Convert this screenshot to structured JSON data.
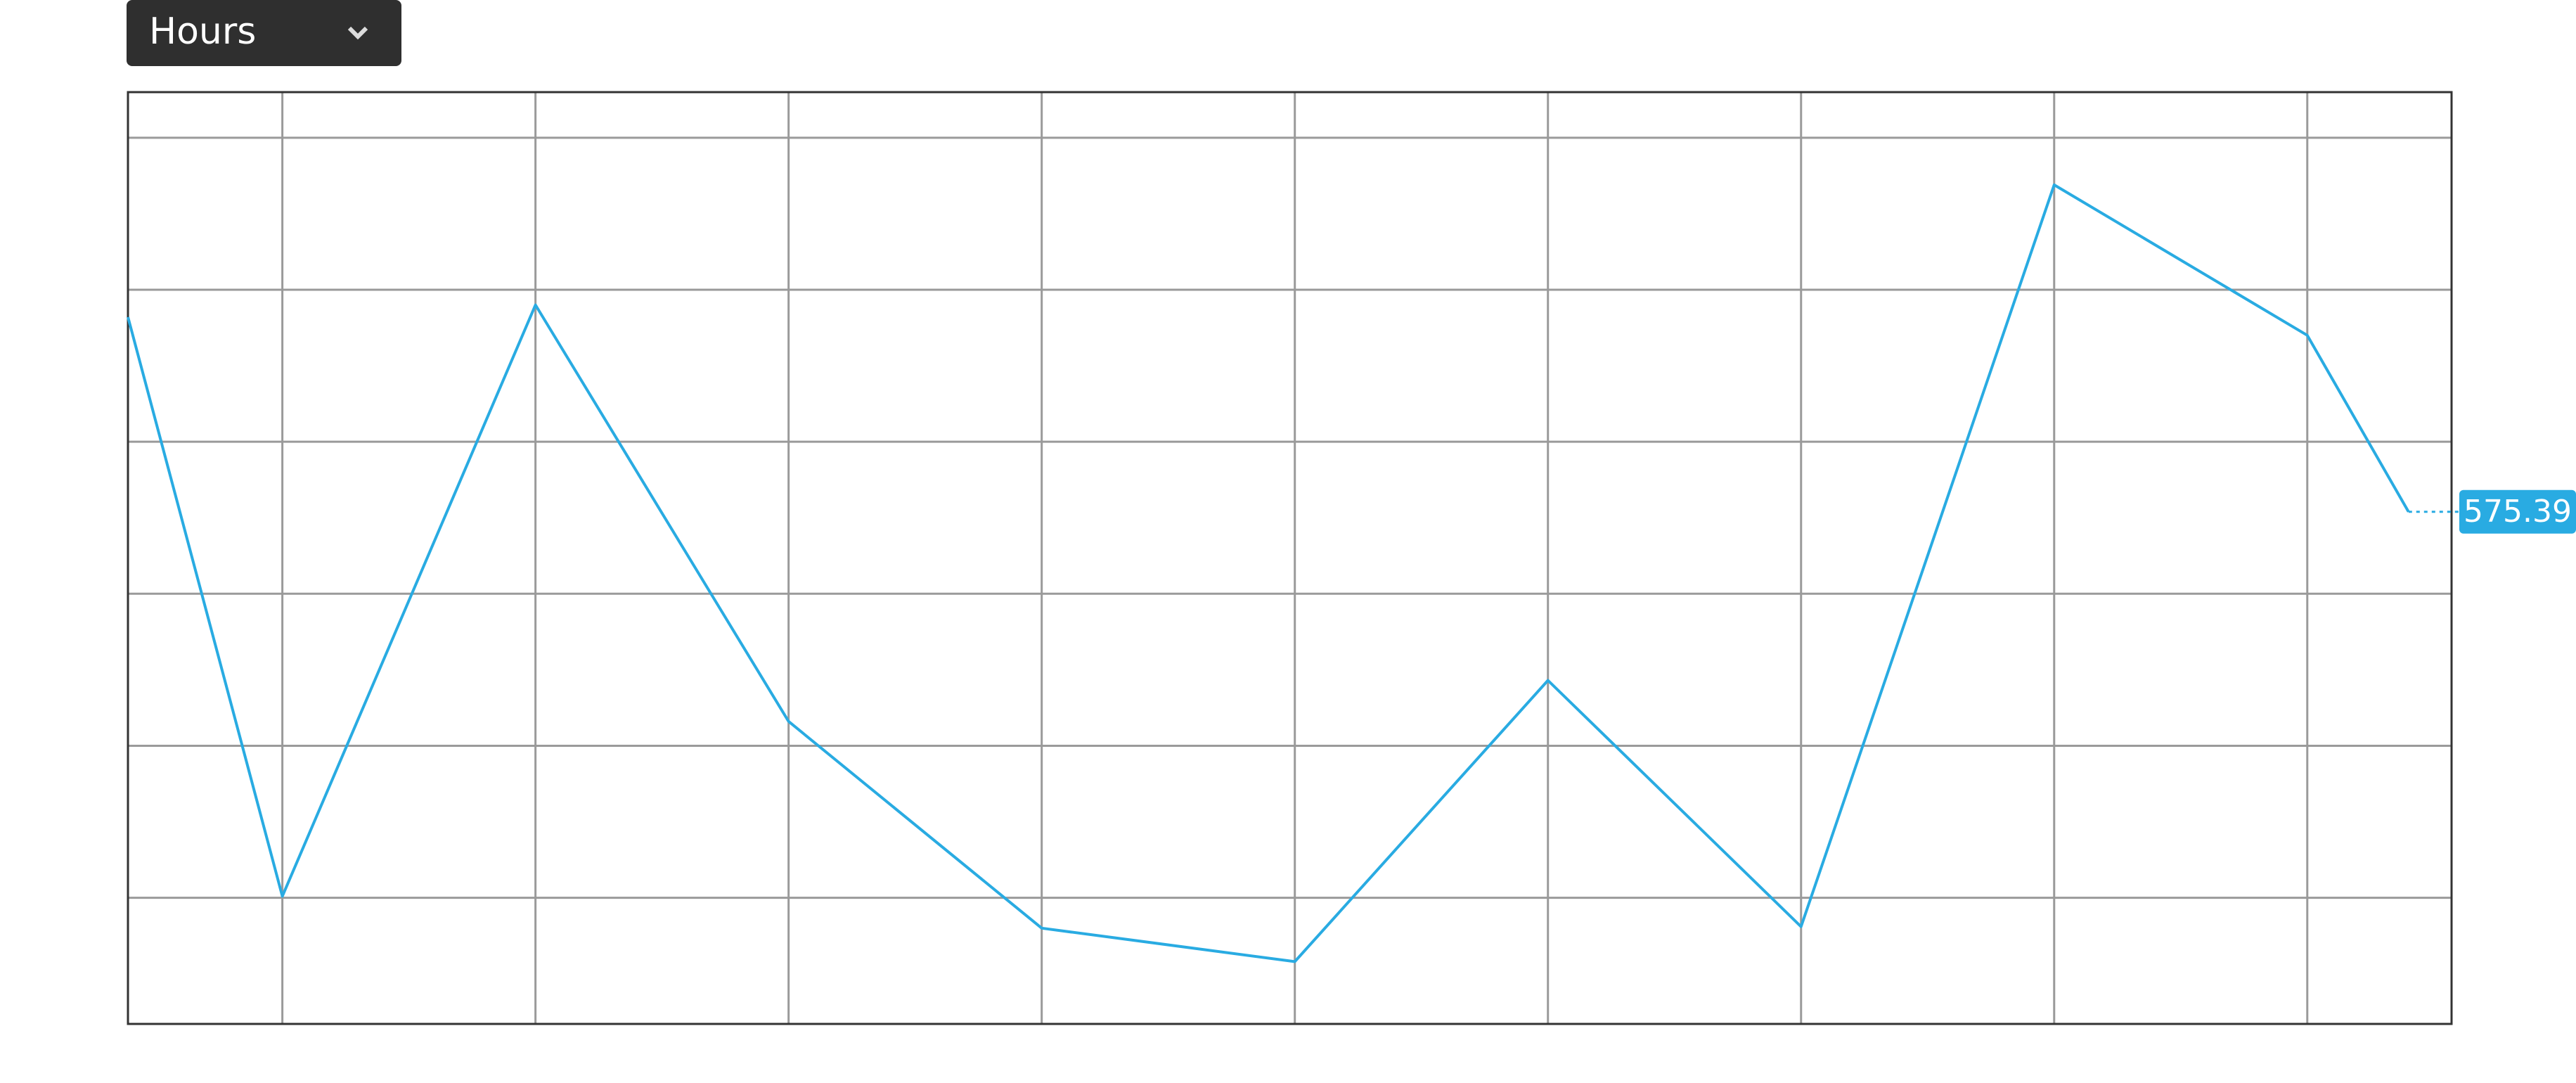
{
  "unit_selector": {
    "label": "Hours"
  },
  "chart_data": {
    "type": "line",
    "x": [
      -0.61,
      0,
      1,
      2,
      3,
      4,
      5,
      6,
      7,
      8,
      8.4
    ],
    "values": [
      588.2,
      550.1,
      589.0,
      561.6,
      548.0,
      545.8,
      564.3,
      548.1,
      596.9,
      587.0,
      575.39
    ],
    "color": "#29abe2",
    "xlim": [
      -0.61,
      8.57
    ],
    "ylim": [
      541.7,
      603.0
    ],
    "xticks": [
      0,
      1,
      2,
      3,
      4,
      5,
      6,
      7,
      8
    ],
    "yticks": [
      550,
      560,
      570,
      580,
      590,
      600
    ],
    "grid": true
  }
}
